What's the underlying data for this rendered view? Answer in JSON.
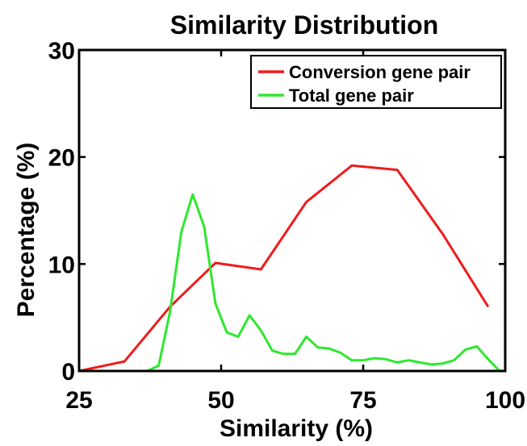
{
  "chart_data": {
    "type": "line",
    "title": "Similarity Distribution",
    "xlabel": "Similarity (%)",
    "ylabel": "Percentage (%)",
    "xlim": [
      25,
      100
    ],
    "ylim": [
      0,
      30
    ],
    "xticks": [
      25,
      50,
      75,
      100
    ],
    "yticks": [
      0,
      10,
      20,
      30
    ],
    "grid": false,
    "legend_position": "top-right",
    "series": [
      {
        "name": "Conversion gene pair",
        "color": "#ee1c1c",
        "points": [
          [
            25,
            0
          ],
          [
            33,
            0.9
          ],
          [
            41,
            6.0
          ],
          [
            49,
            10.1
          ],
          [
            57,
            9.5
          ],
          [
            65,
            15.8
          ],
          [
            73,
            19.2
          ],
          [
            81,
            18.8
          ],
          [
            89,
            12.8
          ],
          [
            97,
            6.0
          ]
        ]
      },
      {
        "name": "Total gene pair",
        "color": "#2ee82e",
        "points": [
          [
            25,
            0
          ],
          [
            37,
            0
          ],
          [
            39,
            0.5
          ],
          [
            41,
            5.5
          ],
          [
            43,
            13.0
          ],
          [
            45,
            16.5
          ],
          [
            47,
            13.5
          ],
          [
            49,
            6.3
          ],
          [
            51,
            3.6
          ],
          [
            53,
            3.2
          ],
          [
            55,
            5.2
          ],
          [
            57,
            3.8
          ],
          [
            59,
            1.9
          ],
          [
            61,
            1.6
          ],
          [
            63,
            1.6
          ],
          [
            65,
            3.2
          ],
          [
            67,
            2.2
          ],
          [
            69,
            2.1
          ],
          [
            71,
            1.7
          ],
          [
            73,
            1.0
          ],
          [
            75,
            1.0
          ],
          [
            77,
            1.2
          ],
          [
            79,
            1.1
          ],
          [
            81,
            0.8
          ],
          [
            83,
            1.0
          ],
          [
            85,
            0.8
          ],
          [
            87,
            0.6
          ],
          [
            89,
            0.7
          ],
          [
            91,
            1.0
          ],
          [
            93,
            2.0
          ],
          [
            95,
            2.3
          ],
          [
            97,
            1.1
          ],
          [
            99,
            0
          ]
        ]
      }
    ]
  }
}
